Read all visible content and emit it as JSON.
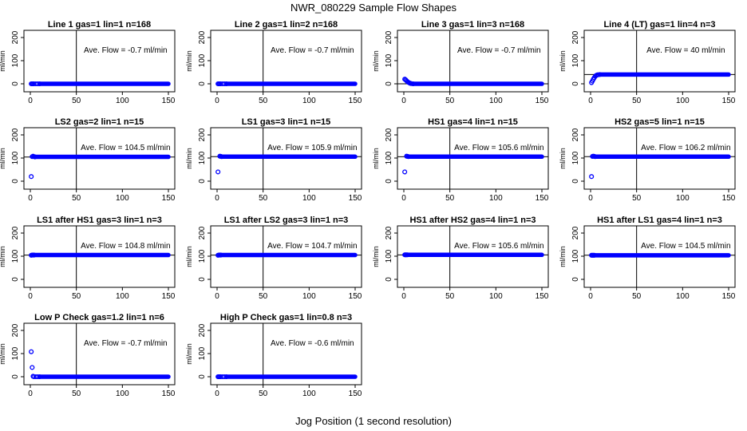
{
  "figure": {
    "title": "NWR_080229  Sample Flow Shapes",
    "xlabel": "Jog Position (1 second resolution)"
  },
  "style": {
    "point_color": "#0000ff",
    "frame_color": "#000000"
  },
  "chart_data": [
    {
      "type": "scatter",
      "title": "Line 1 gas=1 lin=1 n=168",
      "ylabel": "ml/min",
      "annotation": "Ave. Flow =  -0.7  ml/min",
      "xlim": [
        0,
        150
      ],
      "ylim": [
        0,
        200
      ],
      "xticks": [
        0,
        50,
        100,
        150
      ],
      "yticks": [
        0,
        100,
        200
      ],
      "vline": 50,
      "hlines": [],
      "points": [
        [
          1,
          0
        ],
        [
          2,
          0
        ],
        [
          3,
          0
        ],
        [
          4,
          0
        ],
        [
          6,
          0
        ],
        [
          8,
          0
        ],
        [
          10,
          0
        ]
      ],
      "run": {
        "from": 10,
        "to": 150,
        "y": 0
      }
    },
    {
      "type": "scatter",
      "title": "Line 2 gas=1 lin=2 n=168",
      "ylabel": "ml/min",
      "annotation": "Ave. Flow =  -0.7  ml/min",
      "xlim": [
        0,
        150
      ],
      "ylim": [
        0,
        200
      ],
      "xticks": [
        0,
        50,
        100,
        150
      ],
      "yticks": [
        0,
        100,
        200
      ],
      "vline": 50,
      "hlines": [],
      "points": [
        [
          1,
          0
        ],
        [
          2,
          0
        ],
        [
          3,
          0
        ],
        [
          4,
          0
        ],
        [
          6,
          0
        ],
        [
          8,
          0
        ],
        [
          10,
          0
        ]
      ],
      "run": {
        "from": 10,
        "to": 150,
        "y": 0
      }
    },
    {
      "type": "scatter",
      "title": "Line 3 gas=1 lin=3 n=168",
      "ylabel": "ml/min",
      "annotation": "Ave. Flow =  -0.7  ml/min",
      "xlim": [
        0,
        150
      ],
      "ylim": [
        0,
        200
      ],
      "xticks": [
        0,
        50,
        100,
        150
      ],
      "yticks": [
        0,
        100,
        200
      ],
      "vline": 50,
      "hlines": [
        0
      ],
      "points": [
        [
          1,
          20
        ],
        [
          2,
          17
        ],
        [
          3,
          13
        ],
        [
          4,
          9
        ],
        [
          5,
          6
        ],
        [
          6,
          4
        ],
        [
          7,
          2
        ],
        [
          8,
          1
        ],
        [
          10,
          0
        ]
      ],
      "run": {
        "from": 10,
        "to": 150,
        "y": 0
      }
    },
    {
      "type": "scatter",
      "title": "Line 4 (LT) gas=1 lin=4 n=3",
      "ylabel": "ml/min",
      "annotation": "Ave. Flow =  40  ml/min",
      "xlim": [
        0,
        150
      ],
      "ylim": [
        0,
        200
      ],
      "xticks": [
        0,
        50,
        100,
        150
      ],
      "yticks": [
        0,
        100,
        200
      ],
      "vline": 50,
      "hlines": [
        40
      ],
      "points": [
        [
          1,
          5
        ],
        [
          2,
          12
        ],
        [
          3,
          20
        ],
        [
          4,
          26
        ],
        [
          5,
          32
        ],
        [
          6,
          36
        ],
        [
          7,
          38
        ],
        [
          8,
          39
        ],
        [
          10,
          40
        ]
      ],
      "run": {
        "from": 10,
        "to": 150,
        "y": 40
      }
    },
    {
      "type": "scatter",
      "title": "LS2 gas=2 lin=1 n=15",
      "ylabel": "ml/min",
      "annotation": "Ave. Flow =  104.5  ml/min",
      "xlim": [
        0,
        150
      ],
      "ylim": [
        0,
        200
      ],
      "xticks": [
        0,
        50,
        100,
        150
      ],
      "yticks": [
        0,
        100,
        200
      ],
      "vline": 50,
      "hlines": [
        104.5
      ],
      "points": [
        [
          1,
          20
        ],
        [
          2,
          106
        ],
        [
          3,
          108
        ],
        [
          4,
          106
        ],
        [
          5,
          105
        ]
      ],
      "run": {
        "from": 5,
        "to": 150,
        "y": 105
      }
    },
    {
      "type": "scatter",
      "title": "LS1 gas=3 lin=1 n=15",
      "ylabel": "ml/min",
      "annotation": "Ave. Flow =  105.9  ml/min",
      "xlim": [
        0,
        150
      ],
      "ylim": [
        0,
        200
      ],
      "xticks": [
        0,
        50,
        100,
        150
      ],
      "yticks": [
        0,
        100,
        200
      ],
      "vline": 50,
      "hlines": [
        105.9
      ],
      "points": [
        [
          1,
          40
        ],
        [
          3,
          108
        ],
        [
          4,
          107
        ],
        [
          5,
          106
        ]
      ],
      "run": {
        "from": 5,
        "to": 150,
        "y": 106
      }
    },
    {
      "type": "scatter",
      "title": "HS1 gas=4 lin=1 n=15",
      "ylabel": "ml/min",
      "annotation": "Ave. Flow =  105.6  ml/min",
      "xlim": [
        0,
        150
      ],
      "ylim": [
        0,
        200
      ],
      "xticks": [
        0,
        50,
        100,
        150
      ],
      "yticks": [
        0,
        100,
        200
      ],
      "vline": 50,
      "hlines": [
        105.6
      ],
      "points": [
        [
          1,
          40
        ],
        [
          3,
          108
        ],
        [
          4,
          107
        ],
        [
          5,
          106
        ]
      ],
      "run": {
        "from": 5,
        "to": 150,
        "y": 106
      }
    },
    {
      "type": "scatter",
      "title": "HS2 gas=5 lin=1 n=15",
      "ylabel": "ml/min",
      "annotation": "Ave. Flow =  106.2  ml/min",
      "xlim": [
        0,
        150
      ],
      "ylim": [
        0,
        200
      ],
      "xticks": [
        0,
        50,
        100,
        150
      ],
      "yticks": [
        0,
        100,
        200
      ],
      "vline": 50,
      "hlines": [
        106.2
      ],
      "points": [
        [
          1,
          20
        ],
        [
          2,
          107
        ],
        [
          3,
          108
        ],
        [
          4,
          107
        ],
        [
          5,
          106
        ]
      ],
      "run": {
        "from": 5,
        "to": 150,
        "y": 106
      }
    },
    {
      "type": "scatter",
      "title": "LS1 after HS1 gas=3 lin=1 n=3",
      "ylabel": "ml/min",
      "annotation": "Ave. Flow =  104.8  ml/min",
      "xlim": [
        0,
        150
      ],
      "ylim": [
        0,
        200
      ],
      "xticks": [
        0,
        50,
        100,
        150
      ],
      "yticks": [
        0,
        100,
        200
      ],
      "vline": 50,
      "hlines": [
        104.8
      ],
      "points": [
        [
          1,
          104
        ],
        [
          2,
          105
        ],
        [
          3,
          105
        ],
        [
          4,
          105
        ]
      ],
      "run": {
        "from": 4,
        "to": 150,
        "y": 105
      }
    },
    {
      "type": "scatter",
      "title": "LS1 after LS2 gas=3 lin=1 n=3",
      "ylabel": "ml/min",
      "annotation": "Ave. Flow =  104.7  ml/min",
      "xlim": [
        0,
        150
      ],
      "ylim": [
        0,
        200
      ],
      "xticks": [
        0,
        50,
        100,
        150
      ],
      "yticks": [
        0,
        100,
        200
      ],
      "vline": 50,
      "hlines": [
        104.7
      ],
      "points": [
        [
          1,
          104
        ],
        [
          2,
          105
        ],
        [
          3,
          105
        ],
        [
          4,
          105
        ]
      ],
      "run": {
        "from": 4,
        "to": 150,
        "y": 105
      }
    },
    {
      "type": "scatter",
      "title": "HS1 after HS2 gas=4 lin=1 n=3",
      "ylabel": "ml/min",
      "annotation": "Ave. Flow =  105.6  ml/min",
      "xlim": [
        0,
        150
      ],
      "ylim": [
        0,
        200
      ],
      "xticks": [
        0,
        50,
        100,
        150
      ],
      "yticks": [
        0,
        100,
        200
      ],
      "vline": 50,
      "hlines": [
        105.6
      ],
      "points": [
        [
          1,
          106
        ],
        [
          2,
          106
        ],
        [
          3,
          106
        ],
        [
          4,
          106
        ]
      ],
      "run": {
        "from": 4,
        "to": 150,
        "y": 106
      }
    },
    {
      "type": "scatter",
      "title": "HS1 after LS1 gas=4 lin=1 n=3",
      "ylabel": "ml/min",
      "annotation": "Ave. Flow =  104.5  ml/min",
      "xlim": [
        0,
        150
      ],
      "ylim": [
        0,
        200
      ],
      "xticks": [
        0,
        50,
        100,
        150
      ],
      "yticks": [
        0,
        100,
        200
      ],
      "vline": 50,
      "hlines": [
        104.5
      ],
      "points": [
        [
          1,
          104
        ],
        [
          2,
          104
        ],
        [
          3,
          104
        ],
        [
          4,
          104
        ]
      ],
      "run": {
        "from": 4,
        "to": 150,
        "y": 104
      }
    },
    {
      "type": "scatter",
      "title": "Low P Check gas=1.2 lin=1 n=6",
      "ylabel": "ml/min",
      "annotation": "Ave. Flow =  -0.7  ml/min",
      "xlim": [
        0,
        150
      ],
      "ylim": [
        0,
        200
      ],
      "xticks": [
        0,
        50,
        100,
        150
      ],
      "yticks": [
        0,
        100,
        200
      ],
      "vline": 50,
      "hlines": [],
      "points": [
        [
          1,
          108
        ],
        [
          2,
          40
        ],
        [
          3,
          2
        ],
        [
          4,
          0
        ],
        [
          6,
          0
        ],
        [
          8,
          0
        ],
        [
          10,
          0
        ]
      ],
      "run": {
        "from": 10,
        "to": 150,
        "y": 0
      }
    },
    {
      "type": "scatter",
      "title": "High P Check gas=1 lin=0.8 n=3",
      "ylabel": "ml/min",
      "annotation": "Ave. Flow =  -0.6  ml/min",
      "xlim": [
        0,
        150
      ],
      "ylim": [
        0,
        200
      ],
      "xticks": [
        0,
        50,
        100,
        150
      ],
      "yticks": [
        0,
        100,
        200
      ],
      "vline": 50,
      "hlines": [],
      "points": [
        [
          1,
          0
        ],
        [
          2,
          0
        ],
        [
          3,
          0
        ],
        [
          4,
          0
        ],
        [
          6,
          0
        ],
        [
          8,
          0
        ],
        [
          10,
          0
        ]
      ],
      "run": {
        "from": 10,
        "to": 150,
        "y": 0
      }
    }
  ]
}
